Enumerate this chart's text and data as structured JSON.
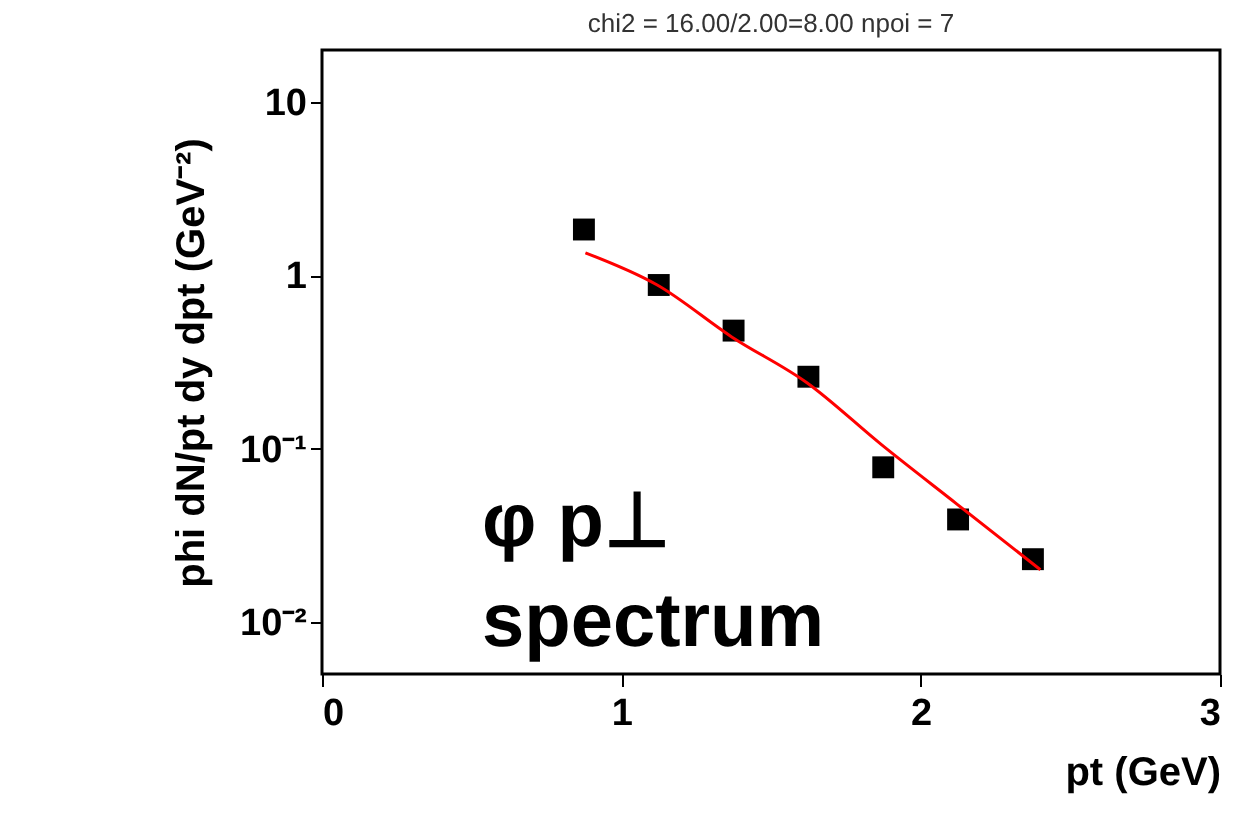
{
  "chart_data": {
    "type": "scatter",
    "title": "chi2 = 16.00/2.00=8.00    npoi = 7",
    "xlabel": "pt (GeV)",
    "ylabel": "phi  dN/pt dy dpt  (GeV⁻²)",
    "annotations": [
      "φ p⊥",
      "spectrum"
    ],
    "log": "y",
    "grid": false,
    "xlim": [
      0,
      3
    ],
    "xticks": [
      0,
      1,
      2,
      3
    ],
    "ylim": [
      0.005,
      20
    ],
    "yticks": [
      {
        "value": 0.01,
        "label": "10⁻²"
      },
      {
        "value": 0.1,
        "label": "10⁻¹"
      },
      1,
      10
    ],
    "series": [
      {
        "marker": "square",
        "color": "#000000",
        "x": [
          0.875,
          1.125,
          1.375,
          1.625,
          1.875,
          2.125,
          2.375
        ],
        "values": [
          1.84,
          0.88,
          0.48,
          0.26,
          0.078,
          0.039,
          0.023
        ]
      },
      {
        "type": "line",
        "color": "#ff0000",
        "x": [
          0.88,
          1.12,
          1.37,
          1.62,
          1.87,
          2.12,
          2.4
        ],
        "values": [
          1.35,
          0.88,
          0.44,
          0.24,
          0.105,
          0.048,
          0.02
        ]
      }
    ]
  }
}
